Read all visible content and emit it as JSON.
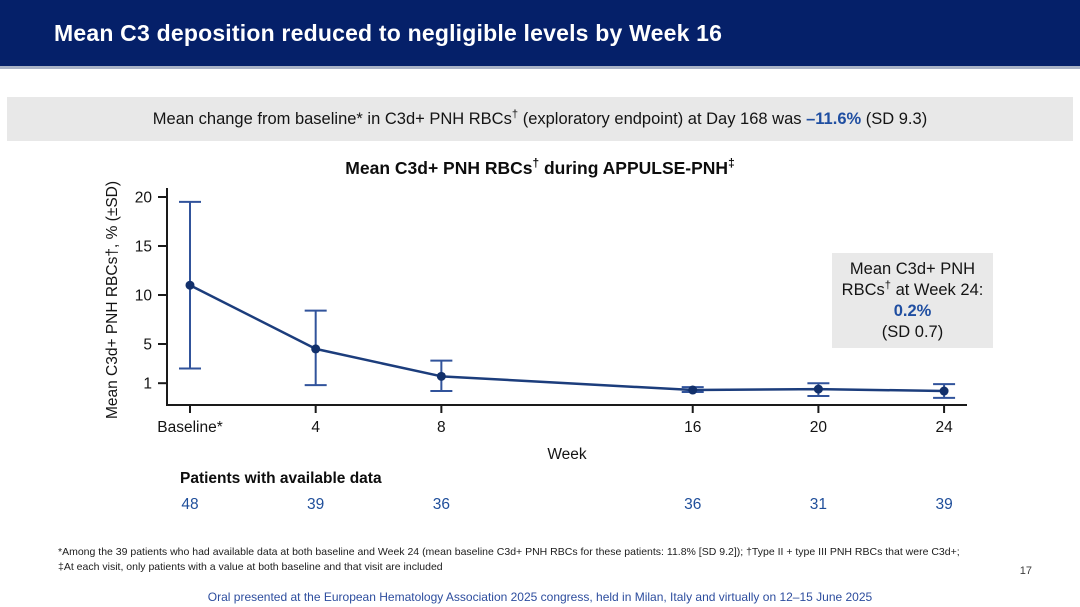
{
  "slide": {
    "title": "Mean C3 deposition reduced to negligible levels by Week 16",
    "page_number": "17",
    "footer": "Oral presented at the European Hematology Association 2025 congress, held in Milan, Italy and virtually on 12–15 June 2025"
  },
  "banner": {
    "text_before": "Mean change from baseline* in C3d+ PNH RBCs",
    "sup": "†",
    "text_mid": " (exploratory endpoint) at Day 168 was ",
    "value": "–11.6%",
    "text_after": " (SD 9.3)"
  },
  "chart_title": {
    "pre": "Mean C3d+ PNH RBCs",
    "sup1": "†",
    "mid": " during APPULSE-PNH",
    "sup2": "‡"
  },
  "annotation_box": {
    "line1": "Mean C3d+ PNH",
    "line2_pre": "RBCs",
    "line2_sup": "†",
    "line2_post": " at Week 24:",
    "value": "0.2%",
    "sd": "(SD 0.7)"
  },
  "footnotes": {
    "line1": "*Among the 39 patients who had available data at both baseline and Week 24 (mean baseline C3d+ PNH RBCs for these patients: 11.8% [SD 9.2]); †Type II + type III PNH RBCs that were C3d+;",
    "line2": "‡At each visit, only patients with a value at both baseline and that visit are included"
  },
  "chart_data": {
    "type": "line",
    "title": "Mean C3d+ PNH RBCs† during APPULSE-PNH‡",
    "xlabel": "Week",
    "ylabel": "Mean C3d+ PNH RBCs†, % (±SD)",
    "x_tick_labels": [
      "Baseline*",
      "4",
      "8",
      "16",
      "20",
      "24"
    ],
    "x_weeks": [
      0,
      4,
      8,
      16,
      20,
      24
    ],
    "y_ticks": [
      1,
      5,
      10,
      15,
      20
    ],
    "ylim": [
      0,
      20
    ],
    "legend": "none",
    "grid": false,
    "series": [
      {
        "name": "Mean C3d+ PNH RBCs, % (±SD)",
        "means": [
          11.0,
          4.5,
          1.7,
          0.3,
          0.4,
          0.2
        ],
        "err_low": [
          2.5,
          0.8,
          0.2,
          0.1,
          -0.3,
          -0.5
        ],
        "err_high": [
          19.5,
          8.4,
          3.3,
          0.6,
          1.0,
          0.9
        ]
      }
    ],
    "patients_label": "Patients with available data",
    "patients": [
      "48",
      "39",
      "36",
      "36",
      "31",
      "39"
    ],
    "annotation": "Mean C3d+ PNH RBCs† at Week 24: 0.2% (SD 0.7)"
  },
  "colors": {
    "header_bg": "#052069",
    "banner_bg": "#e8e8e8",
    "highlight_blue": "#1f4ea1",
    "line": "#1c3d7c",
    "point": "#12306b",
    "error_bar": "#31539b",
    "patients_blue": "#1f4e9a",
    "axis": "#1a1a1a",
    "footer_text": "#2d4d9e",
    "box_bg": "#e9e9e9"
  }
}
